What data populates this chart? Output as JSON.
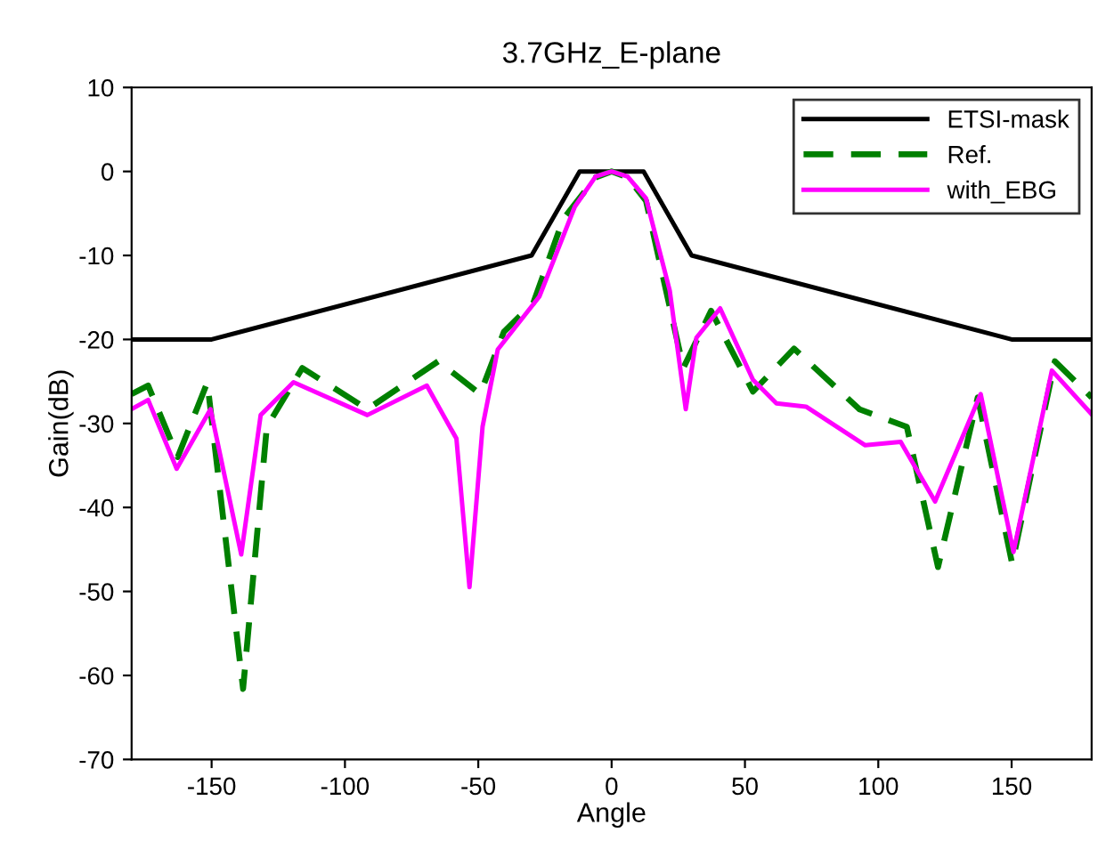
{
  "chart_data": {
    "type": "line",
    "title": "3.7GHz_E-plane",
    "xlabel": "Angle",
    "ylabel": "Gain(dB)",
    "xlim": [
      -180,
      180
    ],
    "xticks": [
      -150,
      -100,
      -50,
      0,
      50,
      100,
      150
    ],
    "ylim": [
      -70,
      10
    ],
    "yticks": [
      -70,
      -60,
      -50,
      -40,
      -30,
      -20,
      -10,
      0,
      10
    ],
    "grid": false,
    "legend": "top right",
    "marker": "none",
    "series": [
      {
        "name": "ETSI-mask",
        "color": "#000000",
        "line_style": "solid",
        "x": [
          -180,
          -150,
          -30,
          -12,
          12,
          30,
          150,
          180
        ],
        "values": [
          -20,
          -20,
          -10,
          0,
          0,
          -10,
          -20,
          -20
        ]
      },
      {
        "name": "Ref.",
        "color": "#008000",
        "line_style": "dashed",
        "x": [
          -180,
          -173.8,
          -162.7,
          -151.6,
          -138.2,
          -129.3,
          -116,
          -91.6,
          -65,
          -49.3,
          -40.4,
          -29.3,
          -18.2,
          -6,
          0,
          6,
          12.9,
          26.9,
          37.3,
          53,
          68.4,
          92.9,
          110.7,
          122.4,
          137.3,
          150.2,
          166.2,
          180
        ],
        "values": [
          -26.5,
          -25.5,
          -34,
          -25.1,
          -61.6,
          -30.4,
          -23.4,
          -28.3,
          -22.6,
          -26.5,
          -19.1,
          -15.6,
          -5.7,
          -0.7,
          0,
          -0.7,
          -3.5,
          -23.4,
          -16.6,
          -26.2,
          -21.1,
          -28.3,
          -30.4,
          -47.1,
          -26.9,
          -46.7,
          -22.6,
          -26.9
        ]
      },
      {
        "name": "with_EBG",
        "color": "#ff00ff",
        "line_style": "solid",
        "x": [
          -180,
          -173.8,
          -163.1,
          -150.4,
          -138.9,
          -131.6,
          -119.3,
          -91.6,
          -69.3,
          -58.2,
          -53.3,
          -48.4,
          -42.7,
          -27.1,
          -13.8,
          -6,
          0,
          6,
          12.9,
          21.8,
          27.8,
          31.8,
          40.7,
          53,
          61.8,
          72.9,
          95.1,
          108.4,
          121.3,
          138.4,
          150.7,
          165.1,
          180
        ],
        "values": [
          -28.3,
          -27.2,
          -35.4,
          -28.3,
          -45.6,
          -29,
          -25.1,
          -29,
          -25.5,
          -31.8,
          -49.5,
          -30.4,
          -21.2,
          -14.9,
          -4.2,
          -0.6,
          0,
          -0.6,
          -3.2,
          -14.2,
          -28.3,
          -19.8,
          -16.3,
          -24.8,
          -27.6,
          -28,
          -32.6,
          -32.2,
          -39.3,
          -26.5,
          -45.3,
          -23.7,
          -28.9
        ]
      }
    ]
  }
}
